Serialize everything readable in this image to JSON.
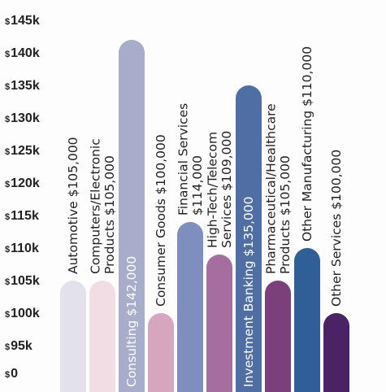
{
  "chart_data": {
    "type": "bar",
    "title": "",
    "xlabel": "",
    "ylabel": "",
    "y_ticks": [
      {
        "value": 0,
        "label": "$0"
      },
      {
        "value": 95000,
        "label": "$95k"
      },
      {
        "value": 100000,
        "label": "$100k"
      },
      {
        "value": 105000,
        "label": "$105k"
      },
      {
        "value": 110000,
        "label": "$110k"
      },
      {
        "value": 115000,
        "label": "$115k"
      },
      {
        "value": 120000,
        "label": "$120k"
      },
      {
        "value": 125000,
        "label": "$125k"
      },
      {
        "value": 130000,
        "label": "$130k"
      },
      {
        "value": 135000,
        "label": "$135k"
      },
      {
        "value": 140000,
        "label": "$140k"
      },
      {
        "value": 145000,
        "label": "$145k"
      }
    ],
    "grid": false,
    "legend": "none",
    "bars": [
      {
        "category": "Automotive",
        "value": 105000,
        "label_lines": [
          "Automotive $105,000"
        ],
        "color": "#e3e1ec",
        "label_inside": false
      },
      {
        "category": "Computers/Electronic Products",
        "value": 105000,
        "label_lines": [
          "Computers/Electronic",
          "Products $105,000"
        ],
        "color": "#f3dde5",
        "label_inside": false
      },
      {
        "category": "Consulting",
        "value": 142000,
        "label_lines": [
          "Consulting $142,000"
        ],
        "color": "#a8adcc",
        "label_inside": true
      },
      {
        "category": "Consumer Goods",
        "value": 100000,
        "label_lines": [
          "Consumer Goods $100,000"
        ],
        "color": "#d6a6c1",
        "label_inside": false
      },
      {
        "category": "Financial Services",
        "value": 114000,
        "label_lines": [
          "Financial Services",
          "$114,000"
        ],
        "color": "#7d8ebf",
        "label_inside": false
      },
      {
        "category": "High-Tech/Telecom Services",
        "value": 109000,
        "label_lines": [
          "High-Tech/Telecom",
          "Services $109,000"
        ],
        "color": "#a56e9f",
        "label_inside": false
      },
      {
        "category": "Investment Banking",
        "value": 135000,
        "label_lines": [
          "Investment Banking $135,000"
        ],
        "color": "#4f6fa4",
        "label_inside": true
      },
      {
        "category": "Pharmaceutical/Healthcare Products",
        "value": 105000,
        "label_lines": [
          "Pharmaceutical/Healthcare",
          "Products $105,000"
        ],
        "color": "#7b3f7c",
        "label_inside": false
      },
      {
        "category": "Other Manufacturing",
        "value": 110000,
        "label_lines": [
          "Other Manufacturing $110,000"
        ],
        "color": "#2f5f96",
        "label_inside": false
      },
      {
        "category": "Other Services",
        "value": 100000,
        "label_lines": [
          "Other Services $100,000"
        ],
        "color": "#4a2366",
        "label_inside": false
      }
    ]
  }
}
